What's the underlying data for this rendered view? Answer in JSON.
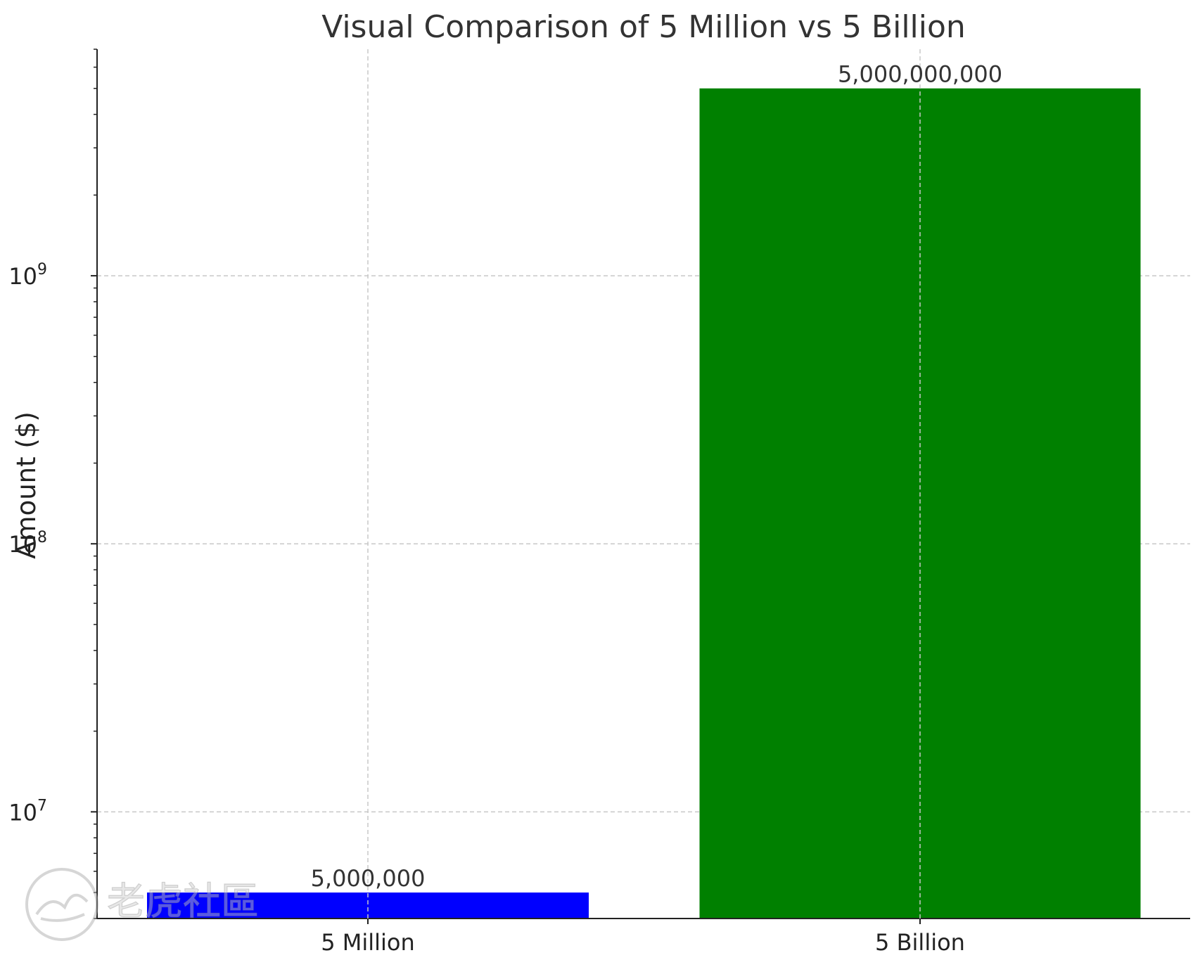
{
  "chart_data": {
    "type": "bar",
    "title": "Visual Comparison of 5 Million vs 5 Billion",
    "xlabel": "",
    "ylabel": "Amount ($)",
    "yscale": "log",
    "ylim": [
      4000000,
      7000000000
    ],
    "yticks": [
      {
        "value": 10000000,
        "base": "10",
        "exp": "7"
      },
      {
        "value": 100000000,
        "base": "10",
        "exp": "8"
      },
      {
        "value": 1000000000,
        "base": "10",
        "exp": "9"
      }
    ],
    "categories": [
      "5 Million",
      "5 Billion"
    ],
    "values": [
      5000000,
      5000000000
    ],
    "data_labels": [
      "5,000,000",
      "5,000,000,000"
    ],
    "colors": [
      "#0000ff",
      "#008000"
    ],
    "grid": true,
    "legend": "none"
  },
  "watermark": {
    "text": "老虎社區"
  }
}
